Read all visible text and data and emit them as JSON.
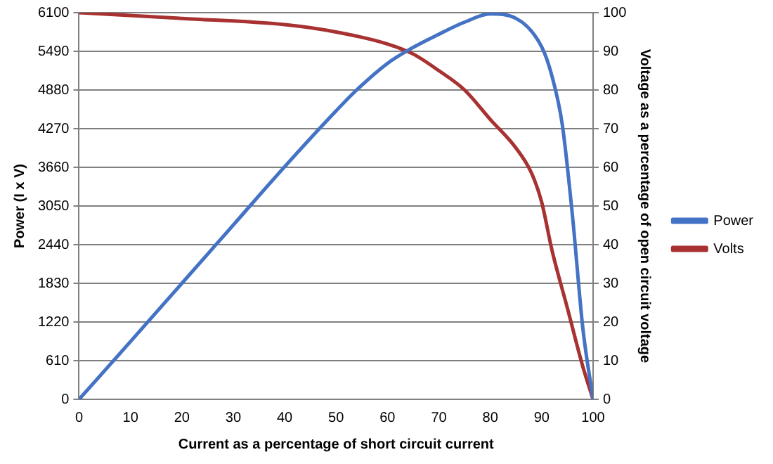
{
  "chart_data": {
    "type": "line",
    "xlabel": "Current as a percentage of short circuit current",
    "ylabel": "Power (I x V)",
    "y2label": "Voltage as a percentage of open circuit voltage",
    "xlim": [
      0,
      100
    ],
    "xticks": [
      0,
      10,
      20,
      30,
      40,
      50,
      60,
      70,
      80,
      90,
      100
    ],
    "ylim": [
      0,
      6100
    ],
    "yticks": [
      0,
      610,
      1220,
      1830,
      2440,
      3050,
      3660,
      4270,
      4880,
      5490,
      6100
    ],
    "y2lim": [
      0,
      100
    ],
    "y2ticks": [
      0,
      10,
      20,
      30,
      40,
      50,
      60,
      70,
      80,
      90,
      100
    ],
    "grid": "y",
    "legend": "right",
    "marker": "none",
    "line_style": "solid",
    "series": [
      {
        "name": "Power",
        "color": "#4472c4",
        "x": [
          0,
          10,
          20,
          30,
          40,
          50,
          54,
          60,
          64.5,
          70,
          75,
          80,
          85,
          90,
          92,
          94,
          96,
          98,
          100
        ],
        "values": [
          0,
          910,
          1830,
          2750,
          3670,
          4550,
          4880,
          5300,
          5530,
          5760,
          5950,
          6080,
          6010,
          5560,
          5100,
          4340,
          2890,
          1130,
          0
        ]
      },
      {
        "name": "Volts",
        "color": "#a83232",
        "axis": "y2",
        "x": [
          0,
          20,
          40,
          50,
          60,
          65,
          70,
          75,
          80,
          85,
          88,
          90,
          92,
          95,
          98,
          100
        ],
        "values": [
          100,
          98.5,
          96.9,
          95,
          91.9,
          89.3,
          85,
          80,
          72.4,
          65,
          58.6,
          51,
          38.6,
          23.6,
          8.5,
          0
        ]
      }
    ]
  }
}
